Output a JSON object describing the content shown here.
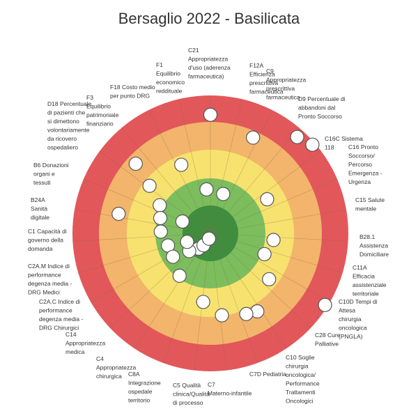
{
  "chart_data": {
    "type": "target",
    "title": "Bersaglio 2022 - Basilicata",
    "bands": [
      {
        "level": 1,
        "color": "#3e8e3e"
      },
      {
        "level": 2,
        "color": "#7cbd5e"
      },
      {
        "level": 3,
        "color": "#f7e26f"
      },
      {
        "level": 4,
        "color": "#f2b56b"
      },
      {
        "level": 5,
        "color": "#e2575a"
      }
    ],
    "score_max": 5,
    "indicators": [
      {
        "label": "F12A Efficienza prescrittiva farmaceutica",
        "score": 3.8
      },
      {
        "label": "C9 Appropriatezza prescrittiva farmaceutica",
        "score": null
      },
      {
        "label": "D9 Percentuale di abbandoni dal Pronto Soccorso",
        "score": null
      },
      {
        "label": "C16C Sistema 118",
        "score": null
      },
      {
        "label": "C16 Pronto Soccorso/ Percorso Emergenza - Urgenza",
        "score": 4.7
      },
      {
        "label": "C15 Salute mentale",
        "score": null
      },
      {
        "label": "B28.1 Assistenza Domiciliare",
        "score": 4.9
      },
      {
        "label": "C11A Efficacia assistenziale territoriale",
        "score": null
      },
      {
        "label": "C10D Tempi di Attesa chirurgia oncologica (PNGLA)",
        "score": null
      },
      {
        "label": "C28 Cure Palliative",
        "score": null
      },
      {
        "label": "C10 Soglie chirurgia oncologica/ Performance Trattamenti Oncologici",
        "score": null
      },
      {
        "label": "C7D Pediatria",
        "score": null
      },
      {
        "label": "C7 Materno-infantile",
        "score": null
      },
      {
        "label": "C5 Qualità clinica/Qualità di processo",
        "score": null
      },
      {
        "label": "C8A Integrazione ospedale territorio",
        "score": null
      },
      {
        "label": "C4 Appropriatezza chirurgica",
        "score": null
      },
      {
        "label": "C14 Appropriatezza medica",
        "score": null
      },
      {
        "label": "C2A.C Indice di performance degenza media - DRG Chirurgici",
        "score": null
      },
      {
        "label": "C2A.M Indice di performance degenza media - DRG Medici",
        "score": null
      },
      {
        "label": "C1 Capacità di governo della domanda",
        "score": null
      },
      {
        "label": "B24A Sanità digitale",
        "score": null
      },
      {
        "label": "B6 Donazioni organi e tessuti",
        "score": null
      },
      {
        "label": "D18 Percentuale di pazienti che si dimettono volontariamente da ricovero ospedaliero",
        "score": 4.9
      },
      {
        "label": "F3 Equilibrio patrimoniale finanziario",
        "score": null
      },
      {
        "label": "F18 Costo medio per punto DRG",
        "score": null
      },
      {
        "label": "F1 Equilibrio economico reddituale",
        "score": null
      },
      {
        "label": "C21 Appropriatezza d'uso (aderenza farmaceutica)",
        "score": 4.3
      }
    ],
    "points_score": [
      4.3,
      3.8,
      4.7,
      4.9,
      2.3,
      1.5,
      1.6,
      2.7,
      2.8,
      3.7,
      3.4,
      2.1,
      1.9,
      1.8,
      1.6,
      1.6,
      0.7,
      0.5,
      0.2,
      3.3,
      2.7,
      2.1,
      2.4,
      4.9,
      3.2,
      3.0,
      2.5,
      1.9,
      1.0,
      0.9,
      1.1
    ]
  }
}
